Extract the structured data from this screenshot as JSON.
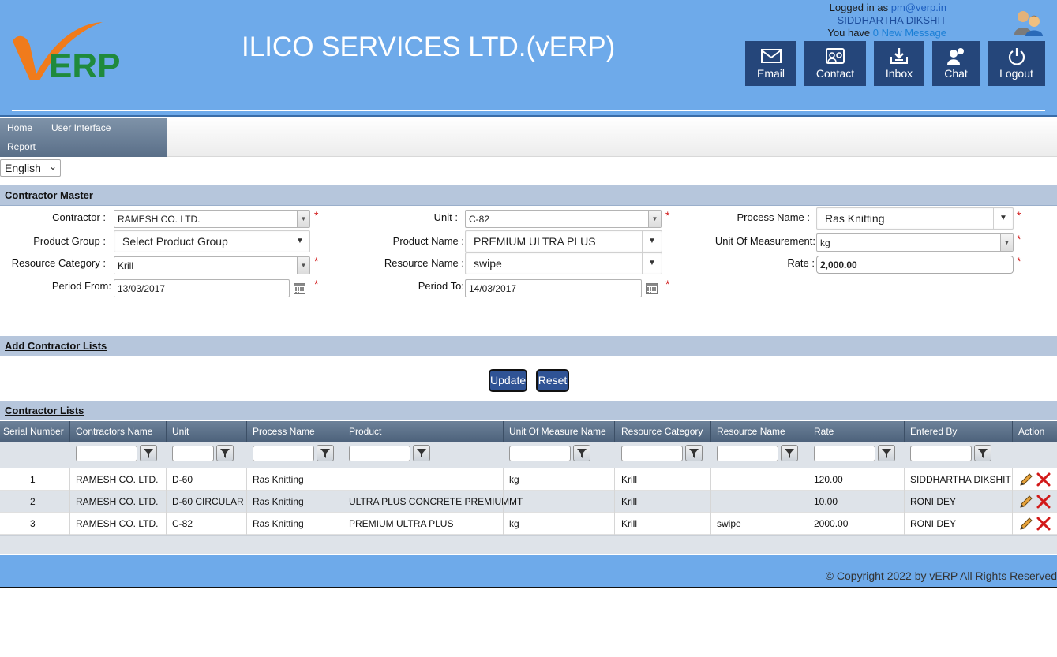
{
  "header": {
    "app_title": "ILICO SERVICES LTD.(vERP)",
    "logo_text": "vERP",
    "logged_in_prefix": "Logged in as ",
    "logged_in_email": "pm@verp.in",
    "user_name": "SIDDHARTHA DIKSHIT",
    "message_prefix": "You have ",
    "message_link": "0 New Message",
    "buttons": [
      {
        "label": "Email",
        "icon": "envelope-icon"
      },
      {
        "label": "Contact",
        "icon": "contact-card-icon"
      },
      {
        "label": "Inbox",
        "icon": "inbox-icon"
      },
      {
        "label": "Chat",
        "icon": "chat-icon"
      },
      {
        "label": "Logout",
        "icon": "power-icon"
      }
    ]
  },
  "menu": {
    "items": [
      "Home",
      "User Interface",
      "Report"
    ]
  },
  "language": {
    "selected": "English"
  },
  "sections": {
    "contractor_master": "Contractor Master",
    "add_contractor_lists": "Add Contractor Lists",
    "contractor_lists": "Contractor Lists"
  },
  "form": {
    "contractor": {
      "label": "Contractor :",
      "value": "RAMESH CO. LTD."
    },
    "unit": {
      "label": "Unit :",
      "value": "C-82"
    },
    "process_name": {
      "label": "Process Name :",
      "value": "Ras Knitting"
    },
    "product_group": {
      "label": "Product Group :",
      "value": "Select Product Group"
    },
    "product_name": {
      "label": "Product Name :",
      "value": "PREMIUM ULTRA PLUS"
    },
    "unit_of_measurement": {
      "label": "Unit Of Measurement:",
      "value": "kg"
    },
    "resource_category": {
      "label": "Resource Category :",
      "value": "Krill"
    },
    "resource_name": {
      "label": "Resource Name :",
      "value": "swipe"
    },
    "rate": {
      "label": "Rate :",
      "value": "2,000.00"
    },
    "period_from": {
      "label": "Period From:",
      "value": "13/03/2017"
    },
    "period_to": {
      "label": "Period To:",
      "value": "14/03/2017"
    },
    "required_mark": "*"
  },
  "actions": {
    "update": "Update",
    "reset": "Reset"
  },
  "grid": {
    "columns": [
      "Serial Number",
      "Contractors Name",
      "Unit",
      "Process Name",
      "Product",
      "Unit Of Measure Name",
      "Resource Category",
      "Resource Name",
      "Rate",
      "Entered By",
      "Action"
    ],
    "rows": [
      {
        "serial": "1",
        "contractor": "RAMESH CO. LTD.",
        "unit": "D-60",
        "process": "Ras Knitting",
        "product": "",
        "uom": "kg",
        "category": "Krill",
        "resource": "",
        "rate": "120.00",
        "entered_by": "SIDDHARTHA DIKSHIT"
      },
      {
        "serial": "2",
        "contractor": "RAMESH CO. LTD.",
        "unit": "D-60 CIRCULAR",
        "process": "Ras Knitting",
        "product": "ULTRA PLUS CONCRETE PREMIUM",
        "uom": "MT",
        "category": "Krill",
        "resource": "",
        "rate": "10.00",
        "entered_by": "RONI DEY"
      },
      {
        "serial": "3",
        "contractor": "RAMESH CO. LTD.",
        "unit": "C-82",
        "process": "Ras Knitting",
        "product": "PREMIUM ULTRA PLUS",
        "uom": "kg",
        "category": "Krill",
        "resource": "swipe",
        "rate": "2000.00",
        "entered_by": "RONI DEY"
      }
    ]
  },
  "footer": {
    "copyright": "© Copyright 2022 by vERP All Rights Reserved"
  },
  "colors": {
    "header_bg": "#6eaaea",
    "button_bg": "#25467a",
    "section_bg": "#b6c6dc",
    "required": "#d21a1a"
  }
}
